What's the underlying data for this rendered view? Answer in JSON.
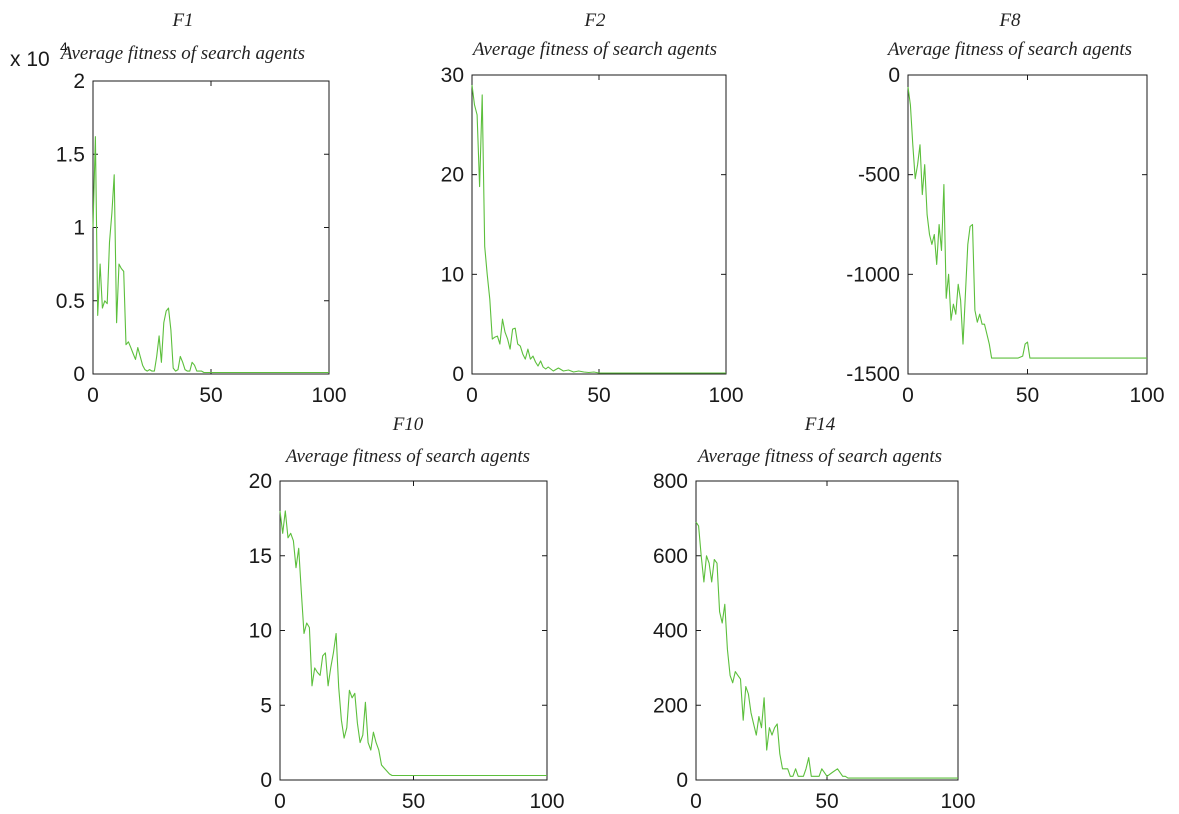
{
  "colors": {
    "line": "#5cbf3c",
    "axis": "#1a1a1a",
    "background": "#ffffff"
  },
  "chart_data": [
    {
      "type": "line",
      "title": "F1",
      "subtitle": "Average fitness of search agents",
      "y_multiplier_label": "x 10",
      "y_multiplier_exponent": "4",
      "xlim": [
        0,
        100
      ],
      "ylim": [
        0,
        2
      ],
      "xticks": [
        0,
        50,
        100
      ],
      "xtick_labels": [
        "0",
        "50",
        "100"
      ],
      "yticks": [
        0,
        0.5,
        1,
        1.5,
        2
      ],
      "ytick_labels": [
        "0",
        "0.5",
        "1",
        "1.5",
        "2"
      ],
      "grid": false,
      "series": [
        {
          "x": [
            0,
            1,
            2,
            3,
            4,
            5,
            6,
            7,
            8,
            9,
            10,
            11,
            12,
            13,
            14,
            15,
            16,
            17,
            18,
            19,
            20,
            21,
            22,
            23,
            24,
            25,
            26,
            27,
            28,
            29,
            30,
            31,
            32,
            33,
            34,
            35,
            36,
            37,
            38,
            39,
            40,
            41,
            42,
            43,
            44,
            45,
            46,
            47,
            48,
            49,
            50,
            60,
            70,
            80,
            90,
            100
          ],
          "y": [
            1.0,
            1.62,
            0.4,
            0.75,
            0.45,
            0.5,
            0.48,
            0.9,
            1.1,
            1.36,
            0.35,
            0.75,
            0.72,
            0.7,
            0.2,
            0.22,
            0.18,
            0.14,
            0.1,
            0.18,
            0.12,
            0.06,
            0.03,
            0.02,
            0.03,
            0.02,
            0.02,
            0.12,
            0.26,
            0.08,
            0.35,
            0.43,
            0.45,
            0.3,
            0.04,
            0.02,
            0.03,
            0.12,
            0.08,
            0.03,
            0.02,
            0.02,
            0.08,
            0.06,
            0.02,
            0.02,
            0.02,
            0.01,
            0.01,
            0.01,
            0.01,
            0.01,
            0.01,
            0.01,
            0.01,
            0.01
          ]
        }
      ]
    },
    {
      "type": "line",
      "title": "F2",
      "subtitle": "Average fitness of search agents",
      "xlim": [
        0,
        100
      ],
      "ylim": [
        0,
        30
      ],
      "xticks": [
        0,
        50,
        100
      ],
      "xtick_labels": [
        "0",
        "50",
        "100"
      ],
      "yticks": [
        0,
        10,
        20,
        30
      ],
      "ytick_labels": [
        "0",
        "10",
        "20",
        "30"
      ],
      "grid": false,
      "series": [
        {
          "x": [
            0,
            1,
            2,
            3,
            4,
            5,
            6,
            7,
            8,
            9,
            10,
            11,
            12,
            13,
            14,
            15,
            16,
            17,
            18,
            19,
            20,
            21,
            22,
            23,
            24,
            25,
            26,
            27,
            28,
            29,
            30,
            32,
            34,
            36,
            38,
            40,
            42,
            44,
            46,
            48,
            50,
            60,
            70,
            80,
            90,
            100
          ],
          "y": [
            29,
            27,
            26,
            18.8,
            28,
            12.8,
            10,
            7.5,
            3.5,
            3.7,
            3.8,
            3.0,
            5.5,
            4.2,
            3.5,
            2.5,
            4.5,
            4.6,
            3.0,
            2.8,
            2.0,
            1.5,
            2.5,
            1.5,
            1.8,
            1.2,
            0.8,
            1.3,
            0.7,
            0.5,
            0.7,
            0.3,
            0.6,
            0.3,
            0.4,
            0.2,
            0.3,
            0.2,
            0.15,
            0.2,
            0.1,
            0.1,
            0.1,
            0.1,
            0.1,
            0.1
          ]
        }
      ]
    },
    {
      "type": "line",
      "title": "F8",
      "subtitle": "Average fitness of search agents",
      "xlim": [
        0,
        100
      ],
      "ylim": [
        -1500,
        0
      ],
      "xticks": [
        0,
        50,
        100
      ],
      "xtick_labels": [
        "0",
        "50",
        "100"
      ],
      "yticks": [
        -1500,
        -1000,
        -500,
        0
      ],
      "ytick_labels": [
        "-1500",
        "-1000",
        "-500",
        "0"
      ],
      "grid": false,
      "series": [
        {
          "x": [
            0,
            1,
            2,
            3,
            4,
            5,
            6,
            7,
            8,
            9,
            10,
            11,
            12,
            13,
            14,
            15,
            16,
            17,
            18,
            19,
            20,
            21,
            22,
            23,
            24,
            25,
            26,
            27,
            28,
            29,
            30,
            31,
            32,
            33,
            34,
            35,
            36,
            37,
            38,
            40,
            42,
            44,
            46,
            48,
            49,
            50,
            51,
            52,
            60,
            70,
            80,
            90,
            100
          ],
          "y": [
            -60,
            -150,
            -350,
            -520,
            -450,
            -350,
            -600,
            -450,
            -700,
            -800,
            -850,
            -800,
            -950,
            -750,
            -880,
            -550,
            -1120,
            -1000,
            -1230,
            -1150,
            -1200,
            -1050,
            -1130,
            -1350,
            -1100,
            -850,
            -760,
            -750,
            -1180,
            -1240,
            -1200,
            -1250,
            -1250,
            -1300,
            -1350,
            -1420,
            -1420,
            -1420,
            -1420,
            -1420,
            -1420,
            -1420,
            -1420,
            -1410,
            -1350,
            -1340,
            -1420,
            -1420,
            -1420,
            -1420,
            -1420,
            -1420,
            -1420
          ]
        }
      ]
    },
    {
      "type": "line",
      "title": "F10",
      "subtitle": "Average fitness of search agents",
      "xlim": [
        0,
        100
      ],
      "ylim": [
        0,
        20
      ],
      "xticks": [
        0,
        50,
        100
      ],
      "xtick_labels": [
        "0",
        "50",
        "100"
      ],
      "yticks": [
        0,
        5,
        10,
        15,
        20
      ],
      "ytick_labels": [
        "0",
        "5",
        "10",
        "15",
        "20"
      ],
      "grid": false,
      "series": [
        {
          "x": [
            0,
            1,
            2,
            3,
            4,
            5,
            6,
            7,
            8,
            9,
            10,
            11,
            12,
            13,
            14,
            15,
            16,
            17,
            18,
            19,
            20,
            21,
            22,
            23,
            24,
            25,
            26,
            27,
            28,
            29,
            30,
            31,
            32,
            33,
            34,
            35,
            36,
            37,
            38,
            39,
            40,
            41,
            42,
            43,
            45,
            50,
            60,
            70,
            80,
            90,
            100
          ],
          "y": [
            18,
            16.5,
            18,
            16.2,
            16.5,
            16,
            14.2,
            15.5,
            12.5,
            9.8,
            10.5,
            10.2,
            6.3,
            7.5,
            7.2,
            7.0,
            8.3,
            8.5,
            6.3,
            7.5,
            8.5,
            9.8,
            6.2,
            4.0,
            2.8,
            3.5,
            6.0,
            5.5,
            5.8,
            3.8,
            2.5,
            3.0,
            5.2,
            2.5,
            2.0,
            3.2,
            2.5,
            2.0,
            1.0,
            0.8,
            0.6,
            0.4,
            0.3,
            0.3,
            0.3,
            0.3,
            0.3,
            0.3,
            0.3,
            0.3,
            0.3
          ]
        }
      ]
    },
    {
      "type": "line",
      "title": "F14",
      "subtitle": "Average fitness of search agents",
      "xlim": [
        0,
        100
      ],
      "ylim": [
        0,
        800
      ],
      "xticks": [
        0,
        50,
        100
      ],
      "xtick_labels": [
        "0",
        "50",
        "100"
      ],
      "yticks": [
        0,
        200,
        400,
        600,
        800
      ],
      "ytick_labels": [
        "0",
        "200",
        "400",
        "600",
        "800"
      ],
      "grid": false,
      "series": [
        {
          "x": [
            0,
            1,
            2,
            3,
            4,
            5,
            6,
            7,
            8,
            9,
            10,
            11,
            12,
            13,
            14,
            15,
            16,
            17,
            18,
            19,
            20,
            21,
            22,
            23,
            24,
            25,
            26,
            27,
            28,
            29,
            30,
            31,
            32,
            33,
            34,
            35,
            36,
            37,
            38,
            39,
            40,
            41,
            42,
            43,
            44,
            45,
            46,
            47,
            48,
            50,
            52,
            54,
            56,
            57,
            58,
            60,
            70,
            80,
            90,
            100
          ],
          "y": [
            690,
            680,
            600,
            530,
            600,
            580,
            530,
            590,
            580,
            450,
            420,
            470,
            350,
            280,
            260,
            290,
            280,
            270,
            160,
            250,
            230,
            180,
            150,
            120,
            170,
            140,
            220,
            80,
            140,
            120,
            140,
            150,
            70,
            30,
            30,
            30,
            10,
            10,
            30,
            10,
            10,
            10,
            30,
            60,
            10,
            10,
            10,
            10,
            30,
            10,
            20,
            30,
            10,
            10,
            5,
            5,
            5,
            5,
            5,
            5
          ]
        }
      ]
    }
  ]
}
